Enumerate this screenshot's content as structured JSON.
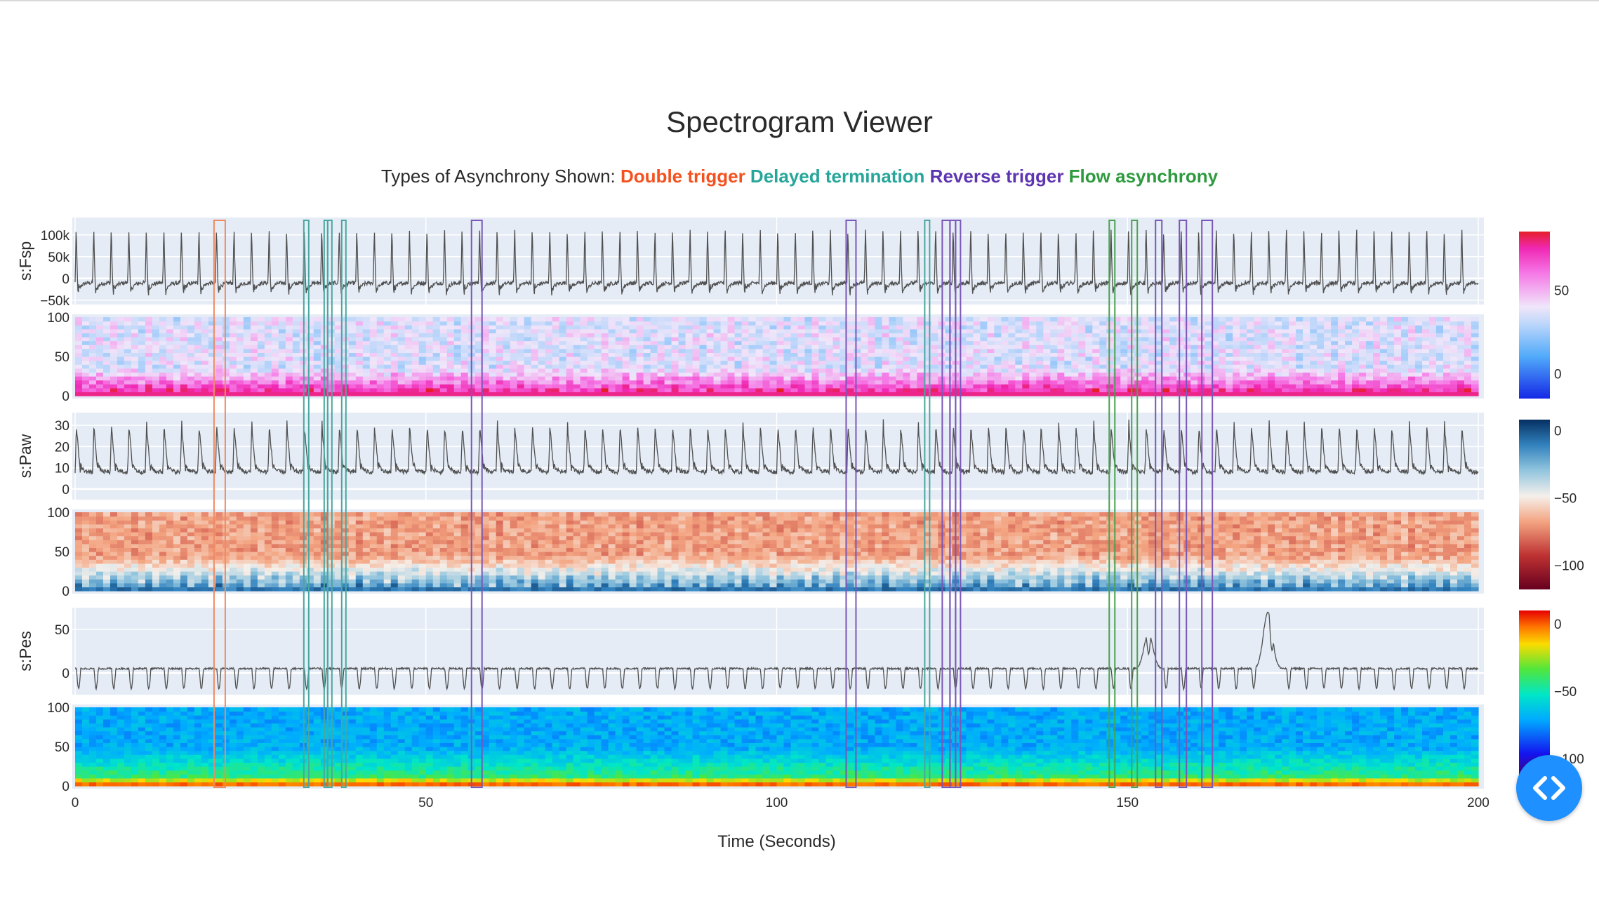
{
  "title": "Spectrogram Viewer",
  "subtitle": {
    "prefix": "Types of Asynchrony Shown:",
    "types": [
      {
        "label": "Double trigger",
        "color": "#f4511e"
      },
      {
        "label": "Delayed termination",
        "color": "#26a69a"
      },
      {
        "label": "Reverse trigger",
        "color": "#5e35b1"
      },
      {
        "label": "Flow asynchrony",
        "color": "#2e9a3e"
      }
    ]
  },
  "colors": {
    "plot_bg": "#e5ecf6",
    "trace": "#505050",
    "double_trigger_box": "#ef8a62",
    "delayed_termination_box": "#4aa6a0",
    "reverse_trigger_box": "#7a57b8",
    "flow_asynchrony_box": "#4aa24e",
    "nav_button": "#1e90ff"
  },
  "chart_data": {
    "type": "line",
    "x_axis": {
      "label": "Time (Seconds)",
      "range": [
        0,
        200
      ],
      "ticks": [
        0,
        50,
        100,
        150,
        200
      ],
      "tick_labels": [
        "0",
        "50",
        "100",
        "150",
        "200"
      ]
    },
    "signals": [
      {
        "name": "s:Fsp",
        "y_range": [
          -60000,
          140000
        ],
        "y_ticks": [
          -50000,
          0,
          50000,
          100000
        ],
        "y_tick_labels": [
          "−50k",
          "0",
          "50k",
          "100k"
        ],
        "baseline": -10000,
        "peak": 120000
      },
      {
        "name": "s:Paw",
        "y_range": [
          -5,
          36
        ],
        "y_ticks": [
          0,
          10,
          20,
          30
        ],
        "y_tick_labels": [
          "0",
          "10",
          "20",
          "30"
        ],
        "baseline": 8,
        "peak": 32
      },
      {
        "name": "s:Pes",
        "y_range": [
          -25,
          75
        ],
        "y_ticks": [
          0,
          50
        ],
        "y_tick_labels": [
          "0",
          "50"
        ],
        "baseline": 5,
        "trough": -18,
        "peak_events": [
          {
            "t": 153,
            "value": 45
          },
          {
            "t": 170,
            "value": 70
          }
        ]
      }
    ],
    "spectrograms": [
      {
        "y_range": [
          0,
          100
        ],
        "y_ticks": [
          0,
          50,
          100
        ],
        "y_tick_labels": [
          "0",
          "50",
          "100"
        ],
        "colorscale": "RdPu-to-Blues (reverse bwr)",
        "colorbar": {
          "range": [
            -15,
            85
          ],
          "ticks": [
            0,
            50
          ],
          "tick_labels": [
            "0",
            "50"
          ]
        }
      },
      {
        "y_range": [
          0,
          100
        ],
        "y_ticks": [
          0,
          50,
          100
        ],
        "y_tick_labels": [
          "0",
          "50",
          "100"
        ],
        "colorscale": "RdBu",
        "colorbar": {
          "range": [
            -118,
            8
          ],
          "ticks": [
            0,
            -50,
            -100
          ],
          "tick_labels": [
            "0",
            "−50",
            "−100"
          ]
        }
      },
      {
        "y_range": [
          0,
          100
        ],
        "y_ticks": [
          0,
          50,
          100
        ],
        "y_tick_labels": [
          "0",
          "50",
          "100"
        ],
        "colorscale": "Jet",
        "colorbar": {
          "range": [
            -115,
            10
          ],
          "ticks": [
            0,
            -50,
            -100
          ],
          "tick_labels": [
            "0",
            "−50",
            "−100"
          ]
        }
      }
    ],
    "breath_interval_s": 2.5,
    "asynchrony_events": [
      {
        "type": "Double trigger",
        "start": 19.8,
        "end": 21.4
      },
      {
        "type": "Delayed termination",
        "start": 32.6,
        "end": 33.3
      },
      {
        "type": "Delayed termination",
        "start": 35.5,
        "end": 36.0
      },
      {
        "type": "Delayed termination",
        "start": 36.0,
        "end": 36.6
      },
      {
        "type": "Delayed termination",
        "start": 38.0,
        "end": 38.6
      },
      {
        "type": "Reverse trigger",
        "start": 56.5,
        "end": 58.0
      },
      {
        "type": "Reverse trigger",
        "start": 109.9,
        "end": 111.3
      },
      {
        "type": "Delayed termination",
        "start": 121.1,
        "end": 121.8
      },
      {
        "type": "Reverse trigger",
        "start": 123.6,
        "end": 124.7
      },
      {
        "type": "Reverse trigger",
        "start": 124.7,
        "end": 125.5
      },
      {
        "type": "Reverse trigger",
        "start": 125.5,
        "end": 126.2
      },
      {
        "type": "Flow asynchrony",
        "start": 147.4,
        "end": 148.2
      },
      {
        "type": "Flow asynchrony",
        "start": 150.6,
        "end": 151.4
      },
      {
        "type": "Reverse trigger",
        "start": 154.0,
        "end": 154.9
      },
      {
        "type": "Reverse trigger",
        "start": 157.4,
        "end": 158.4
      },
      {
        "type": "Reverse trigger",
        "start": 160.6,
        "end": 162.1
      }
    ]
  },
  "nav_button_icon": "code-chevrons-icon"
}
